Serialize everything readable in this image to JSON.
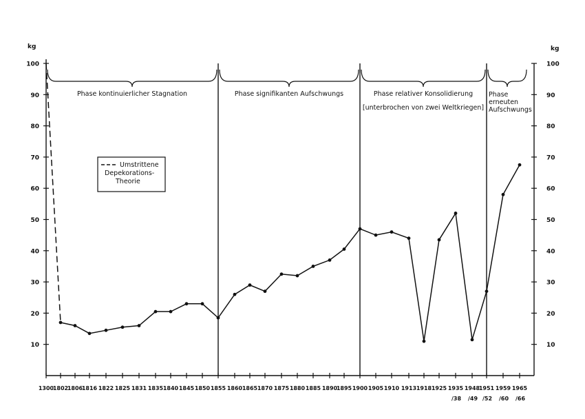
{
  "chart_data": {
    "type": "line",
    "ylabel_left": "kg",
    "ylabel_right": "kg",
    "ylim": [
      0,
      100
    ],
    "yticks_left": [
      10,
      20,
      30,
      40,
      50,
      60,
      70,
      80,
      90,
      100
    ],
    "yticks_right": [
      10,
      20,
      30,
      40,
      50,
      60,
      70,
      80,
      90,
      100
    ],
    "x_labels": [
      [
        "1300"
      ],
      [
        "1802"
      ],
      [
        "1806"
      ],
      [
        "1816"
      ],
      [
        "1822"
      ],
      [
        "1825"
      ],
      [
        "1831"
      ],
      [
        "1835"
      ],
      [
        "1840"
      ],
      [
        "1845"
      ],
      [
        "1850"
      ],
      [
        "1855"
      ],
      [
        "1860"
      ],
      [
        "1865"
      ],
      [
        "1870"
      ],
      [
        "1875"
      ],
      [
        "1880"
      ],
      [
        "1885"
      ],
      [
        "1890"
      ],
      [
        "1895"
      ],
      [
        "1900"
      ],
      [
        "1905"
      ],
      [
        "1910"
      ],
      [
        "1913"
      ],
      [
        "1918"
      ],
      [
        "1925"
      ],
      [
        "1935",
        "/38"
      ],
      [
        "1948",
        "/49"
      ],
      [
        "1951",
        "/52"
      ],
      [
        "1959",
        "/60"
      ],
      [
        "1965",
        "/66"
      ]
    ],
    "series": [
      {
        "style": "solid",
        "points": [
          {
            "x": 1,
            "y": 17
          },
          {
            "x": 2,
            "y": 16
          },
          {
            "x": 3,
            "y": 13.5
          },
          {
            "x": 4,
            "y": 14.5
          },
          {
            "x": 5,
            "y": 15.5
          },
          {
            "x": 6,
            "y": 16
          },
          {
            "x": 7,
            "y": 20.5
          },
          {
            "x": 8,
            "y": 20.5
          },
          {
            "x": 9,
            "y": 23
          },
          {
            "x": 10,
            "y": 23
          },
          {
            "x": 11,
            "y": 18.5
          },
          {
            "x": 12,
            "y": 26
          },
          {
            "x": 13,
            "y": 29
          },
          {
            "x": 14,
            "y": 27
          },
          {
            "x": 15,
            "y": 32.5
          },
          {
            "x": 16,
            "y": 32
          },
          {
            "x": 17,
            "y": 35
          },
          {
            "x": 18,
            "y": 37
          },
          {
            "x": 19,
            "y": 40.5
          },
          {
            "x": 20,
            "y": 47
          },
          {
            "x": 21,
            "y": 45
          },
          {
            "x": 22,
            "y": 46
          },
          {
            "x": 23,
            "y": 44
          },
          {
            "x": 24,
            "y": 11
          },
          {
            "x": 25,
            "y": 43.5
          },
          {
            "x": 26,
            "y": 52
          },
          {
            "x": 27,
            "y": 11.5
          },
          {
            "x": 28,
            "y": 27
          },
          {
            "x": 29,
            "y": 58
          },
          {
            "x": 30,
            "y": 67.5
          }
        ]
      },
      {
        "style": "dashed",
        "name": "Umstrittene Depekorations-Theorie",
        "points": [
          {
            "x": 0,
            "y": 100
          },
          {
            "x": 1,
            "y": 17
          }
        ]
      }
    ],
    "phase_dividers": [
      11,
      20,
      28
    ],
    "phases": [
      {
        "lines": [
          "Phase kontinuierlicher Stagnation"
        ],
        "from": 0,
        "to": 11
      },
      {
        "lines": [
          "Phase signifikanten Aufschwungs"
        ],
        "from": 11,
        "to": 20
      },
      {
        "lines": [
          "Phase relativer Konsolidierung",
          "[unterbrochen von zwei Weltkriegen]"
        ],
        "from": 20,
        "to": 28
      },
      {
        "lines": [
          "Phase",
          "erneuten",
          "Aufschwungs"
        ],
        "from": 28,
        "to": 30.5
      }
    ],
    "legend": {
      "lines": [
        "Umstrittene",
        "Depekorations-",
        "Theorie"
      ],
      "placement": "upper-left"
    }
  }
}
